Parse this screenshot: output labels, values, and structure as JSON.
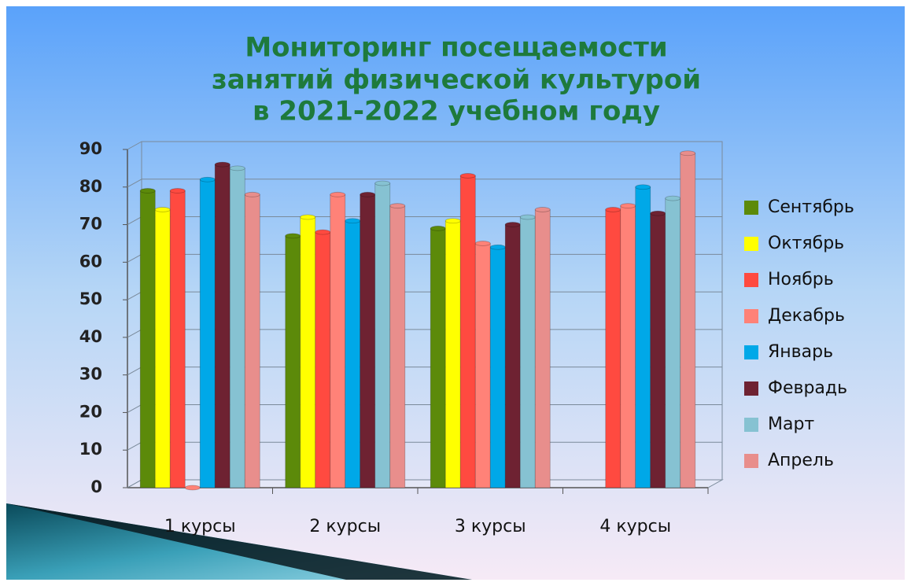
{
  "chart_data": {
    "type": "bar",
    "title": [
      "Мониторинг посещаемости",
      "занятий физической культурой",
      "в 2021-2022 учебном году"
    ],
    "categories": [
      "1 курсы",
      "2 курсы",
      "3 курсы",
      "4 курсы"
    ],
    "series": [
      {
        "name": "Сентябрь",
        "color": "#5c8a0a",
        "values": [
          79,
          67,
          69,
          null
        ]
      },
      {
        "name": "Октябрь",
        "color": "#ffff00",
        "values": [
          74,
          72,
          71,
          null
        ]
      },
      {
        "name": "Ноябрь",
        "color": "#ff4a40",
        "values": [
          79,
          68,
          83,
          74
        ]
      },
      {
        "name": "Декабрь",
        "color": "#ff8278",
        "values": [
          0,
          78,
          65,
          75
        ]
      },
      {
        "name": "Январь",
        "color": "#00a8e8",
        "values": [
          82,
          71,
          64,
          80
        ]
      },
      {
        "name": "Феврадь",
        "color": "#6e2232",
        "values": [
          86,
          78,
          70,
          73
        ]
      },
      {
        "name": "Март",
        "color": "#86c2d2",
        "values": [
          85,
          81,
          72,
          77
        ]
      },
      {
        "name": "Апрель",
        "color": "#e88e8c",
        "values": [
          78,
          75,
          74,
          89
        ]
      }
    ],
    "ylim": [
      0,
      90
    ],
    "yticks": [
      0,
      10,
      20,
      30,
      40,
      50,
      60,
      70,
      80,
      90
    ],
    "grid": true,
    "legend": "right"
  }
}
